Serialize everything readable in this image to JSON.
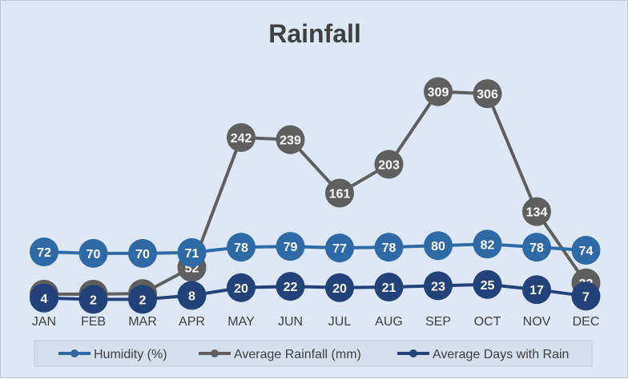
{
  "chart_data": {
    "type": "line",
    "title": "Rainfall",
    "categories": [
      "JAN",
      "FEB",
      "MAR",
      "APR",
      "MAY",
      "JUN",
      "JUL",
      "AUG",
      "SEP",
      "OCT",
      "NOV",
      "DEC"
    ],
    "ylim": [
      0,
      360
    ],
    "grid": false,
    "legend_position": "bottom",
    "series": [
      {
        "name": "Humidity (%)",
        "color": "#2e6aa6",
        "values": [
          72,
          70,
          70,
          71,
          78,
          79,
          77,
          78,
          80,
          82,
          78,
          74
        ]
      },
      {
        "name": "Average Rainfall (mm)",
        "color": "#5f5f5f",
        "values": [
          10,
          10,
          11,
          52,
          242,
          239,
          161,
          203,
          309,
          306,
          134,
          32
        ]
      },
      {
        "name": "Average Days with Rain",
        "color": "#23427a",
        "values": [
          4,
          2,
          2,
          8,
          20,
          22,
          20,
          21,
          23,
          25,
          17,
          7
        ]
      }
    ]
  }
}
